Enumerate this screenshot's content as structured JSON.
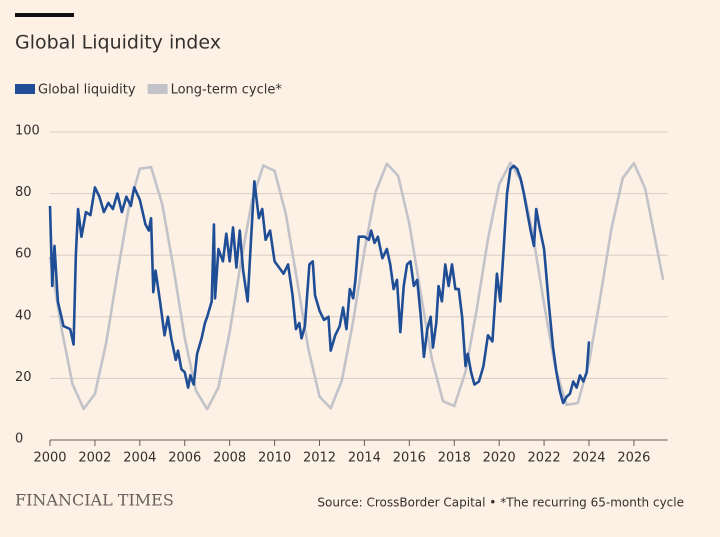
{
  "chart_data": {
    "type": "line",
    "title": "Global Liquidity index",
    "source": "Source: CrossBorder Capital • *The recurring 65-month cycle",
    "brand": "FINANCIAL TIMES",
    "xlim": [
      2000,
      2027.5
    ],
    "xticks": [
      2000,
      2002,
      2004,
      2006,
      2008,
      2010,
      2012,
      2014,
      2016,
      2018,
      2020,
      2022,
      2024,
      2026
    ],
    "ylim": [
      0,
      100
    ],
    "yticks": [
      0,
      20,
      40,
      60,
      80,
      100
    ],
    "grid": true,
    "series": [
      {
        "name": "Global liquidity",
        "color": "#1f4e96",
        "x": [
          2000.0,
          2000.1,
          2000.2,
          2000.35,
          2000.6,
          2000.9,
          2001.05,
          2001.15,
          2001.25,
          2001.4,
          2001.6,
          2001.8,
          2002.0,
          2002.2,
          2002.4,
          2002.6,
          2002.8,
          2003.0,
          2003.2,
          2003.4,
          2003.6,
          2003.75,
          2004.0,
          2004.25,
          2004.4,
          2004.5,
          2004.6,
          2004.7,
          2004.9,
          2005.1,
          2005.25,
          2005.4,
          2005.6,
          2005.7,
          2005.85,
          2006.0,
          2006.15,
          2006.25,
          2006.4,
          2006.55,
          2006.75,
          2006.9,
          2007.0,
          2007.2,
          2007.3,
          2007.35,
          2007.5,
          2007.7,
          2007.85,
          2008.0,
          2008.15,
          2008.3,
          2008.45,
          2008.6,
          2008.8,
          2008.95,
          2009.1,
          2009.3,
          2009.45,
          2009.6,
          2009.8,
          2010.0,
          2010.2,
          2010.4,
          2010.6,
          2010.8,
          2010.95,
          2011.1,
          2011.2,
          2011.35,
          2011.55,
          2011.7,
          2011.8,
          2012.0,
          2012.2,
          2012.4,
          2012.5,
          2012.7,
          2012.9,
          2013.05,
          2013.2,
          2013.35,
          2013.5,
          2013.6,
          2013.75,
          2014.0,
          2014.2,
          2014.3,
          2014.45,
          2014.6,
          2014.8,
          2015.0,
          2015.15,
          2015.3,
          2015.45,
          2015.6,
          2015.75,
          2015.9,
          2016.05,
          2016.2,
          2016.35,
          2016.5,
          2016.65,
          2016.8,
          2016.95,
          2017.05,
          2017.2,
          2017.3,
          2017.45,
          2017.6,
          2017.75,
          2017.9,
          2018.05,
          2018.2,
          2018.35,
          2018.5,
          2018.6,
          2018.75,
          2018.9,
          2019.1,
          2019.3,
          2019.5,
          2019.7,
          2019.9,
          2020.05,
          2020.2,
          2020.35,
          2020.5,
          2020.65,
          2020.8,
          2020.95,
          2021.1,
          2021.25,
          2021.4,
          2021.55,
          2021.65,
          2021.8,
          2022.0,
          2022.2,
          2022.4,
          2022.55,
          2022.7,
          2022.85,
          2023.0,
          2023.15,
          2023.3,
          2023.45,
          2023.6,
          2023.75,
          2023.9,
          2024.0
        ],
        "values": [
          76,
          50,
          63,
          45,
          37,
          36,
          31,
          60,
          75,
          66,
          74,
          73,
          82,
          79,
          74,
          77,
          75,
          80,
          74,
          79,
          76,
          82,
          78,
          70,
          68,
          72,
          48,
          55,
          45,
          34,
          40,
          33,
          26,
          29,
          23,
          22,
          17,
          21,
          18,
          28,
          33,
          38,
          40,
          45,
          70,
          46,
          62,
          58,
          67,
          58,
          69,
          56,
          68,
          55,
          45,
          65,
          84,
          72,
          75,
          65,
          68,
          58,
          56,
          54,
          57,
          47,
          36,
          38,
          33,
          37,
          57,
          58,
          47,
          42,
          39,
          40,
          29,
          34,
          37,
          43,
          36,
          49,
          46,
          52,
          66,
          66,
          65,
          68,
          64,
          66,
          59,
          62,
          57,
          49,
          52,
          35,
          50,
          57,
          58,
          50,
          52,
          41,
          27,
          36,
          40,
          30,
          38,
          50,
          45,
          57,
          50,
          57,
          49,
          49,
          40,
          24,
          28,
          22,
          18,
          19,
          24,
          34,
          32,
          54,
          45,
          62,
          80,
          88,
          89,
          88,
          85,
          80,
          74,
          68,
          63,
          75,
          69,
          62,
          45,
          30,
          22,
          16,
          12,
          14,
          15,
          19,
          17,
          21,
          19,
          22,
          32
        ]
      },
      {
        "name": "Long-term cycle*",
        "color": "#c2c3c8",
        "x": [
          2000,
          2000.5,
          2001,
          2001.5,
          2002,
          2002.5,
          2003,
          2003.5,
          2004,
          2004.5,
          2005,
          2005.5,
          2006,
          2006.5,
          2007,
          2007.5,
          2008,
          2008.5,
          2009,
          2009.5,
          2010,
          2010.5,
          2011,
          2011.5,
          2012,
          2012.5,
          2013,
          2013.5,
          2014,
          2014.5,
          2015,
          2015.5,
          2016,
          2016.5,
          2017,
          2017.5,
          2018,
          2018.5,
          2019,
          2019.5,
          2020,
          2020.5,
          2021,
          2021.5,
          2022,
          2022.5,
          2023,
          2023.5,
          2024,
          2024.5,
          2025,
          2025.5,
          2026,
          2026.5,
          2027,
          2027.3
        ],
        "values": [
          59.5,
          36.7,
          18.2,
          10.1,
          15.0,
          31.5,
          53.9,
          75.1,
          88.1,
          88.6,
          76.5,
          55.8,
          33.1,
          16.0,
          10.0,
          17.1,
          35.0,
          57.7,
          78.0,
          89.1,
          87.4,
          73.4,
          51.9,
          29.7,
          14.1,
          10.3,
          19.4,
          38.6,
          61.5,
          80.6,
          89.7,
          85.8,
          70.2,
          48.0,
          26.4,
          12.6,
          11.0,
          22.1,
          42.4,
          65.2,
          83.0,
          90.0,
          83.9,
          66.8,
          44.2,
          23.4,
          11.4,
          12.0,
          25.0,
          46.2,
          68.6,
          85.0,
          89.9,
          81.7,
          63.2,
          52
        ]
      }
    ]
  }
}
